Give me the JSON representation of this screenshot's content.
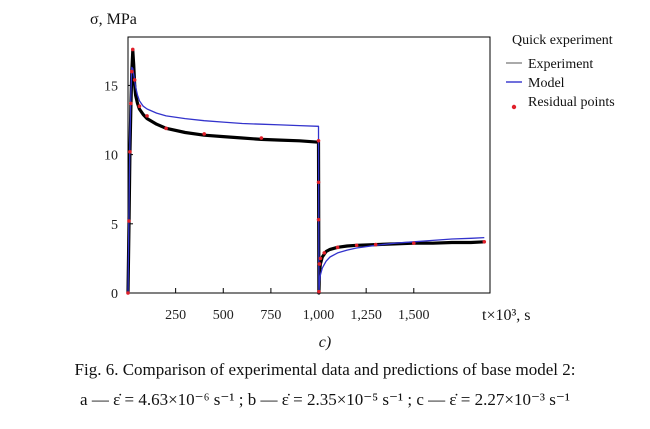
{
  "panel_label": "c)",
  "caption": {
    "line1": "Fig. 6. Comparison of experimental data and predictions of base model 2:",
    "line2": "a — ε̇ = 4.63×10⁻⁶ s⁻¹ ; b — ε̇ = 2.35×10⁻⁵ s⁻¹ ; c — ε̇ = 2.27×10⁻³ s⁻¹"
  },
  "colors": {
    "experiment": "#000000",
    "model": "#3333cc",
    "residual": "#e0202a",
    "axis": "#000000"
  },
  "chart_data": {
    "type": "line",
    "title": "Quick experiment",
    "ylabel": "σ, MPa",
    "xlabel": "t×10³, s",
    "xlim": [
      0,
      1900
    ],
    "ylim": [
      0,
      18.5
    ],
    "xticks": [
      250,
      500,
      750,
      1000,
      1250,
      1500
    ],
    "xtick_labels": [
      "250",
      "500",
      "750",
      "1,000",
      "1,250",
      "1,500"
    ],
    "yticks": [
      0,
      5,
      10,
      15
    ],
    "ytick_labels": [
      "0",
      "5",
      "10",
      "15"
    ],
    "grid": false,
    "legend_position": "top-right outside",
    "series": [
      {
        "name": "Experiment",
        "style": "thick-line",
        "x": [
          0,
          5,
          10,
          15,
          20,
          25,
          30,
          35,
          40,
          50,
          60,
          80,
          100,
          150,
          200,
          300,
          400,
          500,
          600,
          700,
          800,
          900,
          1000,
          1002,
          1005,
          1010,
          1020,
          1040,
          1060,
          1100,
          1150,
          1200,
          1300,
          1400,
          1500,
          1600,
          1700,
          1800,
          1870
        ],
        "y": [
          0,
          5,
          10,
          13.5,
          16,
          17.5,
          16.5,
          15,
          14.3,
          13.7,
          13.3,
          12.9,
          12.6,
          12.2,
          11.9,
          11.6,
          11.4,
          11.3,
          11.2,
          11.1,
          11.05,
          11.0,
          10.9,
          0,
          1.5,
          2.1,
          2.6,
          3.0,
          3.15,
          3.3,
          3.4,
          3.45,
          3.5,
          3.55,
          3.6,
          3.6,
          3.65,
          3.65,
          3.7
        ]
      },
      {
        "name": "Model",
        "style": "thin-line",
        "x": [
          0,
          5,
          10,
          15,
          20,
          25,
          30,
          40,
          50,
          60,
          80,
          100,
          150,
          200,
          300,
          400,
          500,
          600,
          700,
          800,
          900,
          1000,
          1002,
          1005,
          1010,
          1020,
          1040,
          1060,
          1100,
          1150,
          1200,
          1300,
          1400,
          1500,
          1600,
          1700,
          1800,
          1870
        ],
        "y": [
          0,
          6,
          11,
          14.5,
          16.3,
          16.2,
          15.8,
          14.9,
          14.3,
          13.9,
          13.5,
          13.3,
          13.0,
          12.8,
          12.6,
          12.45,
          12.35,
          12.25,
          12.2,
          12.15,
          12.1,
          12.05,
          0,
          0.8,
          1.3,
          1.8,
          2.3,
          2.6,
          2.9,
          3.1,
          3.25,
          3.45,
          3.6,
          3.7,
          3.8,
          3.9,
          3.95,
          4.0
        ]
      },
      {
        "name": "Residual points",
        "style": "points",
        "x": [
          0,
          5,
          10,
          15,
          20,
          25,
          35,
          60,
          100,
          200,
          400,
          700,
          1000,
          1000,
          1000,
          1002,
          1005,
          1010,
          1030,
          1100,
          1200,
          1300,
          1500,
          1870
        ],
        "y": [
          0,
          5.2,
          10.2,
          13.7,
          16.0,
          17.6,
          15.4,
          13.5,
          12.8,
          11.9,
          11.5,
          11.2,
          11.0,
          8.0,
          5.3,
          0.1,
          2.1,
          2.5,
          2.9,
          3.3,
          3.45,
          3.5,
          3.6,
          3.7
        ]
      }
    ]
  }
}
